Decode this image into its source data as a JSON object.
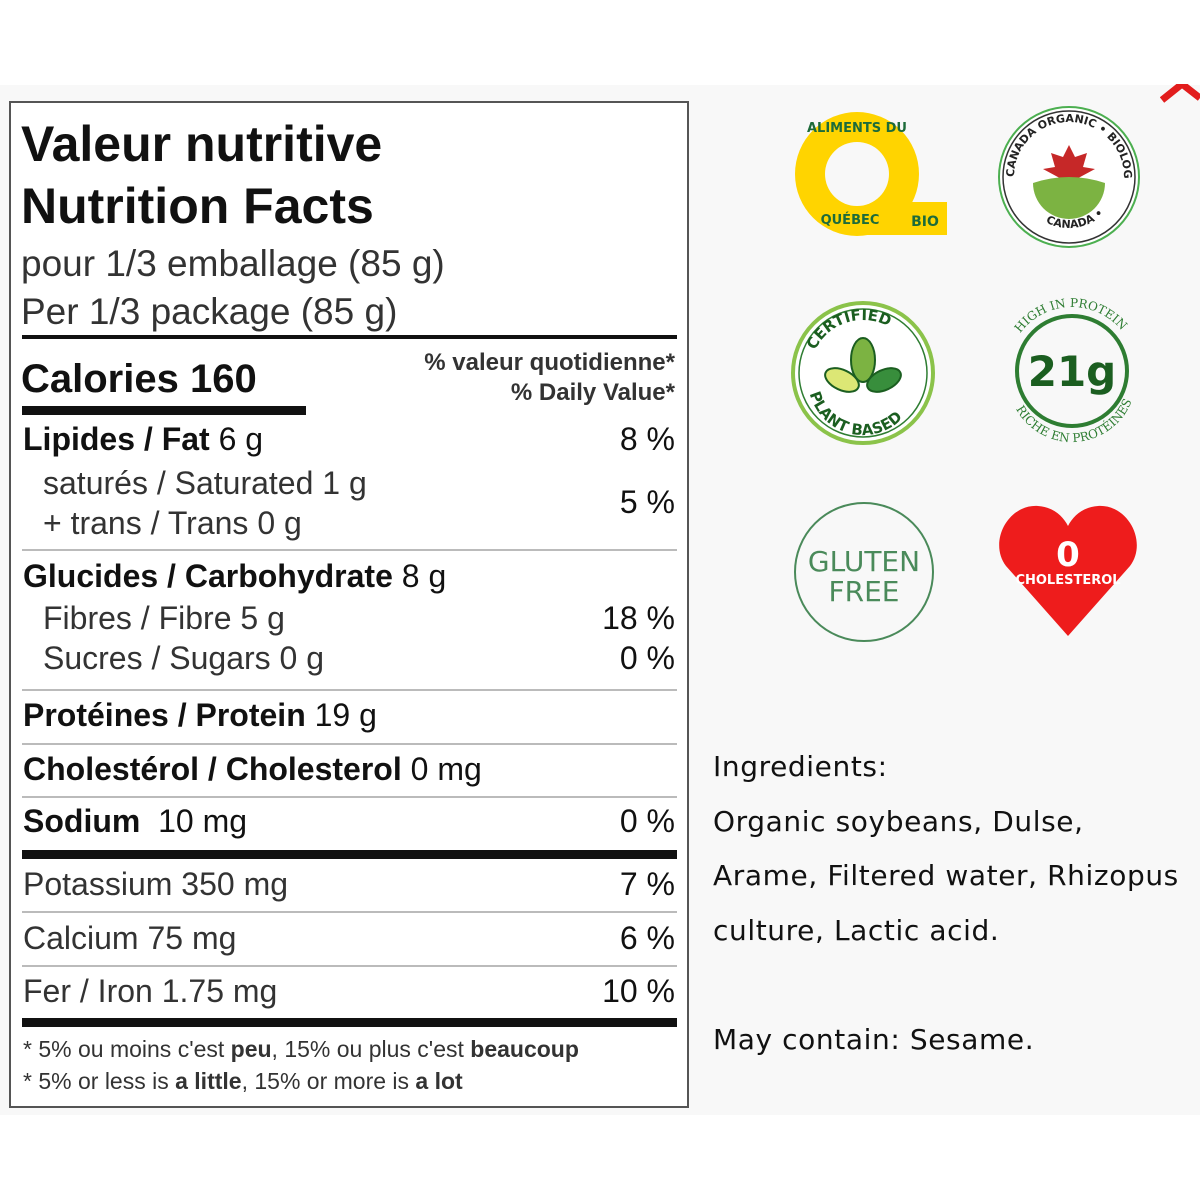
{
  "nutrition": {
    "title_fr": "Valeur nutritive",
    "title_en": "Nutrition Facts",
    "serving_fr": "pour 1/3 emballage (85 g)",
    "serving_en": "Per 1/3 package (85 g)",
    "calories_label": "Calories 160",
    "dv_fr": "% valeur quotidienne*",
    "dv_en": "% Daily Value*",
    "fat_label": "Lipides / Fat",
    "fat_amount": "6 g",
    "fat_dv": "8 %",
    "sat_label": "saturés / Saturated",
    "sat_amount": "1 g",
    "trans_label": "+ trans / Trans",
    "trans_amount": "0 g",
    "sat_trans_dv": "5 %",
    "carb_label": "Glucides / Carbohydrate",
    "carb_amount": "8 g",
    "fibre_label": "Fibres / Fibre",
    "fibre_amount": "5 g",
    "fibre_dv": "18 %",
    "sugars_label": "Sucres / Sugars",
    "sugars_amount": "0 g",
    "sugars_dv": "0 %",
    "protein_label": "Protéines / Protein",
    "protein_amount": "19 g",
    "chol_label": "Cholestérol / Cholesterol",
    "chol_amount": "0 mg",
    "sodium_label": "Sodium",
    "sodium_amount": "10 mg",
    "sodium_dv": "0 %",
    "potassium_label": "Potassium",
    "potassium_amount": "350 mg",
    "potassium_dv": "7 %",
    "calcium_label": "Calcium",
    "calcium_amount": "75 mg",
    "calcium_dv": "6 %",
    "iron_label": "Fer / Iron",
    "iron_amount": "1.75 mg",
    "iron_dv": "10 %",
    "foot_fr": {
      "a": "* 5% ou moins c'est ",
      "b": "peu",
      "c": ", 15% ou plus c'est ",
      "d": "beaucoup"
    },
    "foot_en": {
      "a": "* 5% or less is ",
      "b": "a little",
      "c": ", 15% or more is ",
      "d": "a lot"
    }
  },
  "badges": {
    "quebec": {
      "arc": "ALIMENTS DU",
      "bottom": "QUÉBEC",
      "bio": "BIO"
    },
    "canada": {
      "top": "CANADA ORGANIC • BIOLOGIQUE",
      "bottom": "CANADA •"
    },
    "plant": {
      "top": "CERTIFIED",
      "bottom": "PLANT BASED"
    },
    "protein": {
      "value": "21g",
      "top": "HIGH IN PROTEIN",
      "bottom": "RICHE EN PROTÉINES"
    },
    "gluten": {
      "line1": "GLUTEN",
      "line2": "FREE"
    },
    "cholesterol": {
      "value": "0",
      "label": "CHOLESTEROL"
    }
  },
  "ingredients": {
    "heading": "Ingredients:",
    "line1": "Organic soybeans, Dulse,",
    "line2": "Arame, Filtered water, Rhizopus",
    "line3": "culture, Lactic acid.",
    "allergen": "May contain: Sesame."
  },
  "colors": {
    "red": "#ee1c1c",
    "green": "#2e7d32",
    "yellow": "#ffd400"
  }
}
